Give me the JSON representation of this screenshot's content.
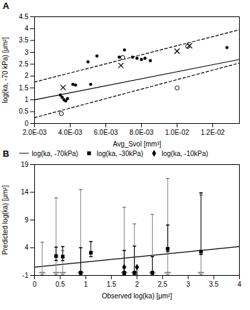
{
  "chart_data": [
    {
      "type": "scatter",
      "title": "A",
      "x_label": "Avg_Svol [mm³]",
      "y_label": "log(ka, -70 kPa) [μm²]",
      "xlim": [
        0.002,
        0.0135
      ],
      "ylim": [
        0,
        4.5
      ],
      "xticks": [
        {
          "value": 0.002,
          "label": "2.0E-03"
        },
        {
          "value": 0.004,
          "label": "4.0E-03"
        },
        {
          "value": 0.006,
          "label": "6.0E-03"
        },
        {
          "value": 0.008,
          "label": "8.0E-03"
        },
        {
          "value": 0.01,
          "label": "1.0E-02"
        },
        {
          "value": 0.012,
          "label": "1.2E-02"
        }
      ],
      "yticks": [
        0,
        0.5,
        1,
        1.5,
        2,
        2.5,
        3,
        3.5,
        4,
        4.5
      ],
      "series": [
        {
          "type": "line",
          "line_style": "solid",
          "color": "black",
          "x": [
            0.002,
            0.0135
          ],
          "values": [
            1.0,
            2.7
          ]
        },
        {
          "type": "line",
          "line_style": "dashed",
          "color": "black",
          "x": [
            0.002,
            0.0135
          ],
          "values": [
            1.75,
            3.95
          ]
        },
        {
          "type": "line",
          "line_style": "dashed",
          "color": "black",
          "x": [
            0.002,
            0.0135
          ],
          "values": [
            0.25,
            2.55
          ]
        },
        {
          "type": "scatter",
          "marker": "circle",
          "color": "black",
          "x": [
            0.00345,
            0.00355,
            0.00365,
            0.00375,
            0.00385,
            0.00415,
            0.0043,
            0.005,
            0.00515,
            0.0055,
            0.00675,
            0.0069,
            0.00705,
            0.0075,
            0.00775,
            0.008,
            0.0082,
            0.0085,
            0.0128
          ],
          "values": [
            1.2,
            1.1,
            1.0,
            0.95,
            1.05,
            1.65,
            1.62,
            2.6,
            1.65,
            2.85,
            2.8,
            2.8,
            3.1,
            2.8,
            2.75,
            2.7,
            2.75,
            2.65,
            3.2
          ]
        },
        {
          "type": "scatter",
          "marker": "open_circle",
          "color": "black",
          "x": [
            0.0035,
            0.00695,
            0.01,
            0.0106
          ],
          "values": [
            0.42,
            2.78,
            1.5,
            3.25
          ]
        },
        {
          "type": "scatter",
          "marker": "x",
          "color": "black",
          "x": [
            0.0036,
            0.00685,
            0.01,
            0.0107
          ],
          "values": [
            1.52,
            2.45,
            3.05,
            3.28
          ]
        }
      ]
    },
    {
      "type": "scatter",
      "title": "B",
      "x_label": "Observed log(ka) [μm²]",
      "y_label": "Predicted log(ka) [μm²]",
      "xlim": [
        0,
        4
      ],
      "ylim": [
        -1,
        19
      ],
      "xticks": [
        0,
        0.5,
        1,
        1.5,
        2,
        2.5,
        3,
        3.5,
        4
      ],
      "yticks": [
        -1,
        4,
        9,
        14,
        19
      ],
      "legend": "upper left",
      "series": [
        {
          "type": "line",
          "line_style": "solid",
          "color": "black",
          "x": [
            0,
            4
          ],
          "values": [
            0.5,
            4.2
          ]
        },
        {
          "name": "log(ka, -70kPa)",
          "type": "scatter",
          "marker": "hline",
          "color": "gray",
          "x": [
            0.15,
            0.42,
            0.55,
            0.9,
            1.75,
            1.95,
            2.3,
            2.6,
            3.25
          ],
          "values": [
            -0.5,
            -0.5,
            -0.5,
            -0.5,
            -0.5,
            -0.5,
            -0.5,
            -0.5,
            -0.5
          ],
          "error_low": [
            0.4,
            0.4,
            0.4,
            0.4,
            0.4,
            0.4,
            0.4,
            0.4,
            0.4
          ],
          "error_high": [
            5.5,
            13.5,
            4.0,
            15.0,
            11.8,
            8.8,
            10.5,
            17.0,
            14.0
          ]
        },
        {
          "name": "log(ka, -30kPa)",
          "type": "scatter",
          "marker": "square",
          "color": "black",
          "x": [
            0.42,
            0.55,
            0.9,
            1.1,
            1.75,
            1.95,
            2.3,
            2.6,
            3.25
          ],
          "values": [
            2.5,
            2.4,
            -0.5,
            3.1,
            -0.5,
            -0.5,
            -0.5,
            3.8,
            3.3
          ],
          "error_low": [
            0.8,
            0.7,
            0.5,
            0.7,
            0.4,
            0.5,
            0.5,
            0.5,
            0.5
          ],
          "error_high": [
            1.6,
            1.8,
            4.5,
            2.0,
            4.0,
            4.8,
            2.9,
            4.3,
            10.6
          ]
        },
        {
          "name": "log(ka, -10kPa)",
          "type": "scatter",
          "marker": "diamond",
          "color": "black",
          "x": [
            1.75,
            2.0
          ],
          "values": [
            0.5,
            0.5
          ],
          "error_low": [
            1.5,
            1.5
          ],
          "error_high": [
            0.0,
            0.0
          ]
        }
      ]
    }
  ]
}
